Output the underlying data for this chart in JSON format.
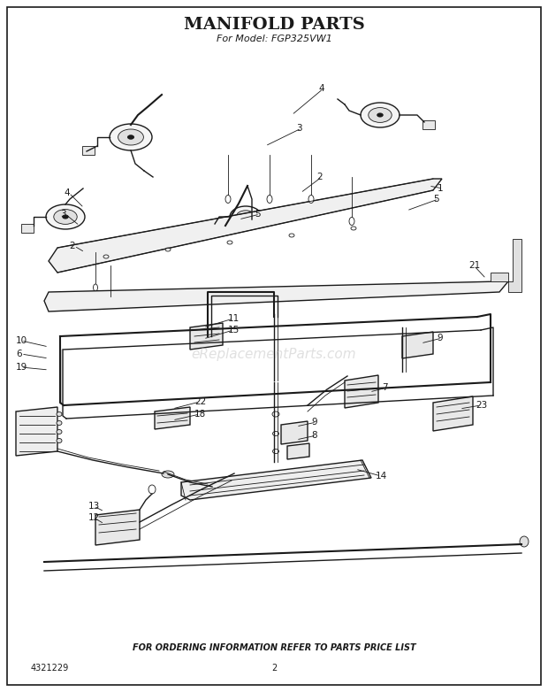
{
  "title": "MANIFOLD PARTS",
  "subtitle": "For Model: FGP325VW1",
  "footer_text": "FOR ORDERING INFORMATION REFER TO PARTS PRICE LIST",
  "part_number": "4321229",
  "page_number": "2",
  "background_color": "#ffffff",
  "diagram_color": "#1a1a1a",
  "watermark_text": "eReplacementParts.com",
  "watermark_color": "#bbbbbb",
  "watermark_alpha": 0.45,
  "title_fontsize": 14,
  "subtitle_fontsize": 8,
  "footer_fontsize": 7,
  "label_fontsize": 7.5,
  "fig_width": 6.2,
  "fig_height": 7.82,
  "dpi": 100
}
